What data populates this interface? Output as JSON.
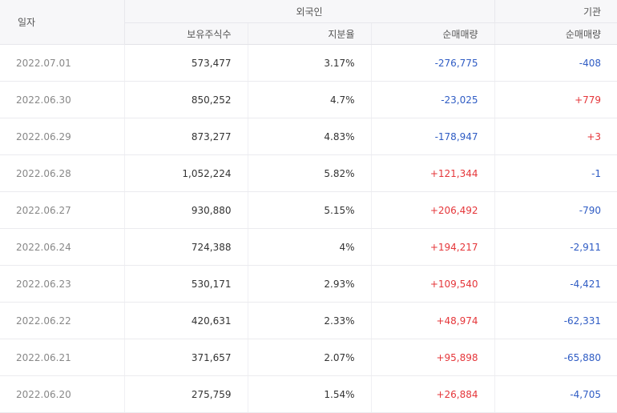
{
  "header": {
    "date_label": "일자",
    "foreign_label": "외국인",
    "institution_label": "기관",
    "col_holdings": "보유주식수",
    "col_ratio": "지분율",
    "col_foreign_net": "순매매량",
    "col_inst_net": "순매매량"
  },
  "colors": {
    "up": "#e5363a",
    "down": "#2f5cc4"
  },
  "rows": [
    {
      "date": "2022.07.01",
      "holdings": "573,477",
      "ratio": "3.17%",
      "foreign_net": "-276,775",
      "inst_net": "-408"
    },
    {
      "date": "2022.06.30",
      "holdings": "850,252",
      "ratio": "4.7%",
      "foreign_net": "-23,025",
      "inst_net": "+779"
    },
    {
      "date": "2022.06.29",
      "holdings": "873,277",
      "ratio": "4.83%",
      "foreign_net": "-178,947",
      "inst_net": "+3"
    },
    {
      "date": "2022.06.28",
      "holdings": "1,052,224",
      "ratio": "5.82%",
      "foreign_net": "+121,344",
      "inst_net": "-1"
    },
    {
      "date": "2022.06.27",
      "holdings": "930,880",
      "ratio": "5.15%",
      "foreign_net": "+206,492",
      "inst_net": "-790"
    },
    {
      "date": "2022.06.24",
      "holdings": "724,388",
      "ratio": "4%",
      "foreign_net": "+194,217",
      "inst_net": "-2,911"
    },
    {
      "date": "2022.06.23",
      "holdings": "530,171",
      "ratio": "2.93%",
      "foreign_net": "+109,540",
      "inst_net": "-4,421"
    },
    {
      "date": "2022.06.22",
      "holdings": "420,631",
      "ratio": "2.33%",
      "foreign_net": "+48,974",
      "inst_net": "-62,331"
    },
    {
      "date": "2022.06.21",
      "holdings": "371,657",
      "ratio": "2.07%",
      "foreign_net": "+95,898",
      "inst_net": "-65,880"
    },
    {
      "date": "2022.06.20",
      "holdings": "275,759",
      "ratio": "1.54%",
      "foreign_net": "+26,884",
      "inst_net": "-4,705"
    }
  ]
}
